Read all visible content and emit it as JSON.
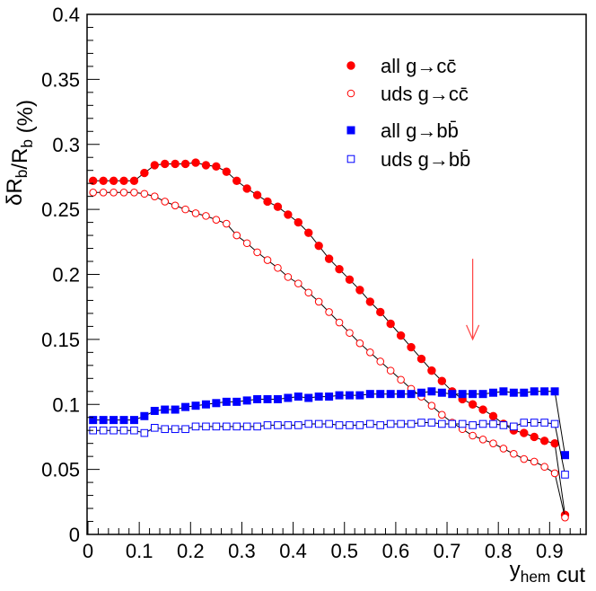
{
  "chart_data": {
    "type": "line",
    "title": "",
    "ylabel": "δR_b/R_b (%)",
    "xlabel": "y_hem cut",
    "xlim": [
      0,
      0.95
    ],
    "ylim": [
      0,
      0.4
    ],
    "xticks": [
      "0",
      "0.1",
      "0.2",
      "0.3",
      "0.4",
      "0.5",
      "0.6",
      "0.7",
      "0.8",
      "0.9"
    ],
    "yticks": [
      "0",
      "0.05",
      "0.1",
      "0.15",
      "0.2",
      "0.25",
      "0.3",
      "0.35",
      "0.4"
    ],
    "grid": false,
    "legend_position": "top-right",
    "arrow_at_x": 0.75,
    "series": [
      {
        "name": "all g→cc̄",
        "color": "#ff0000",
        "marker": "filled-circle",
        "x": [
          0.01,
          0.03,
          0.05,
          0.07,
          0.09,
          0.11,
          0.13,
          0.15,
          0.17,
          0.19,
          0.21,
          0.23,
          0.25,
          0.27,
          0.29,
          0.31,
          0.33,
          0.35,
          0.37,
          0.39,
          0.41,
          0.43,
          0.45,
          0.47,
          0.49,
          0.51,
          0.53,
          0.55,
          0.57,
          0.59,
          0.61,
          0.63,
          0.65,
          0.67,
          0.69,
          0.71,
          0.73,
          0.75,
          0.77,
          0.79,
          0.81,
          0.83,
          0.85,
          0.87,
          0.89,
          0.91,
          0.93
        ],
        "y": [
          0.272,
          0.272,
          0.272,
          0.272,
          0.272,
          0.278,
          0.284,
          0.285,
          0.285,
          0.285,
          0.286,
          0.284,
          0.283,
          0.279,
          0.272,
          0.266,
          0.261,
          0.256,
          0.252,
          0.246,
          0.24,
          0.232,
          0.222,
          0.212,
          0.204,
          0.196,
          0.188,
          0.179,
          0.171,
          0.162,
          0.153,
          0.144,
          0.135,
          0.126,
          0.118,
          0.11,
          0.104,
          0.1,
          0.096,
          0.091,
          0.085,
          0.08,
          0.078,
          0.075,
          0.072,
          0.07,
          0.015
        ]
      },
      {
        "name": "uds g→cc̄",
        "color": "#ff0000",
        "marker": "open-circle",
        "x": [
          0.01,
          0.03,
          0.05,
          0.07,
          0.09,
          0.11,
          0.13,
          0.15,
          0.17,
          0.19,
          0.21,
          0.23,
          0.25,
          0.27,
          0.29,
          0.31,
          0.33,
          0.35,
          0.37,
          0.39,
          0.41,
          0.43,
          0.45,
          0.47,
          0.49,
          0.51,
          0.53,
          0.55,
          0.57,
          0.59,
          0.61,
          0.63,
          0.65,
          0.67,
          0.69,
          0.71,
          0.73,
          0.75,
          0.77,
          0.79,
          0.81,
          0.83,
          0.85,
          0.87,
          0.89,
          0.91,
          0.93
        ],
        "y": [
          0.263,
          0.263,
          0.263,
          0.263,
          0.263,
          0.262,
          0.26,
          0.256,
          0.253,
          0.25,
          0.247,
          0.245,
          0.242,
          0.239,
          0.23,
          0.224,
          0.217,
          0.211,
          0.205,
          0.198,
          0.193,
          0.186,
          0.179,
          0.171,
          0.163,
          0.155,
          0.147,
          0.14,
          0.133,
          0.126,
          0.119,
          0.112,
          0.106,
          0.099,
          0.092,
          0.086,
          0.081,
          0.076,
          0.073,
          0.07,
          0.066,
          0.062,
          0.058,
          0.056,
          0.052,
          0.047,
          0.013
        ]
      },
      {
        "name": "all g→bb̄",
        "color": "#0000ff",
        "marker": "filled-square",
        "x": [
          0.01,
          0.03,
          0.05,
          0.07,
          0.09,
          0.11,
          0.13,
          0.15,
          0.17,
          0.19,
          0.21,
          0.23,
          0.25,
          0.27,
          0.29,
          0.31,
          0.33,
          0.35,
          0.37,
          0.39,
          0.41,
          0.43,
          0.45,
          0.47,
          0.49,
          0.51,
          0.53,
          0.55,
          0.57,
          0.59,
          0.61,
          0.63,
          0.65,
          0.67,
          0.69,
          0.71,
          0.73,
          0.75,
          0.77,
          0.79,
          0.81,
          0.83,
          0.85,
          0.87,
          0.89,
          0.91,
          0.93
        ],
        "y": [
          0.088,
          0.088,
          0.088,
          0.088,
          0.088,
          0.091,
          0.095,
          0.096,
          0.096,
          0.098,
          0.099,
          0.1,
          0.101,
          0.102,
          0.102,
          0.103,
          0.104,
          0.104,
          0.104,
          0.105,
          0.106,
          0.105,
          0.106,
          0.106,
          0.107,
          0.107,
          0.107,
          0.108,
          0.108,
          0.108,
          0.108,
          0.108,
          0.109,
          0.11,
          0.109,
          0.108,
          0.108,
          0.108,
          0.108,
          0.109,
          0.11,
          0.109,
          0.109,
          0.11,
          0.11,
          0.11,
          0.061
        ]
      },
      {
        "name": "uds g→bb̄",
        "color": "#0000ff",
        "marker": "open-square",
        "x": [
          0.01,
          0.03,
          0.05,
          0.07,
          0.09,
          0.11,
          0.13,
          0.15,
          0.17,
          0.19,
          0.21,
          0.23,
          0.25,
          0.27,
          0.29,
          0.31,
          0.33,
          0.35,
          0.37,
          0.39,
          0.41,
          0.43,
          0.45,
          0.47,
          0.49,
          0.51,
          0.53,
          0.55,
          0.57,
          0.59,
          0.61,
          0.63,
          0.65,
          0.67,
          0.69,
          0.71,
          0.73,
          0.75,
          0.77,
          0.79,
          0.81,
          0.83,
          0.85,
          0.87,
          0.89,
          0.91,
          0.93
        ],
        "y": [
          0.08,
          0.08,
          0.08,
          0.08,
          0.08,
          0.078,
          0.082,
          0.081,
          0.081,
          0.081,
          0.083,
          0.083,
          0.083,
          0.083,
          0.083,
          0.083,
          0.083,
          0.084,
          0.084,
          0.084,
          0.084,
          0.085,
          0.085,
          0.085,
          0.084,
          0.084,
          0.084,
          0.085,
          0.084,
          0.085,
          0.085,
          0.085,
          0.086,
          0.086,
          0.085,
          0.085,
          0.085,
          0.084,
          0.085,
          0.085,
          0.084,
          0.083,
          0.086,
          0.086,
          0.086,
          0.085,
          0.046
        ]
      }
    ]
  }
}
